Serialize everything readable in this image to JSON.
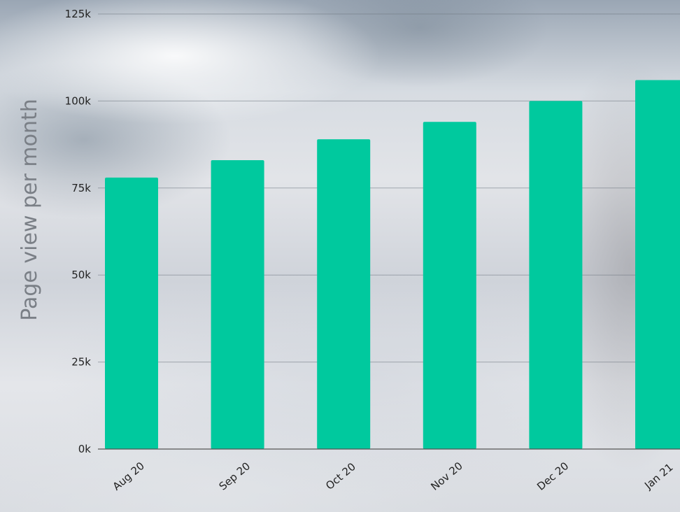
{
  "chart_data": {
    "type": "bar",
    "categories": [
      "Aug 20",
      "Sep 20",
      "Oct 20",
      "Nov 20",
      "Dec 20",
      "Jan 21"
    ],
    "values": [
      78000,
      83000,
      89000,
      94000,
      100000,
      106000
    ],
    "ylabel": "Page view per month",
    "xlabel": "",
    "ylim": [
      0,
      125000
    ],
    "yticks": [
      0,
      25000,
      50000,
      75000,
      100000,
      125000
    ],
    "ytick_labels": [
      "0k",
      "25k",
      "50k",
      "75k",
      "100k",
      "125k"
    ],
    "bar_color": "#00c99e",
    "grid": true,
    "legend": "none"
  }
}
